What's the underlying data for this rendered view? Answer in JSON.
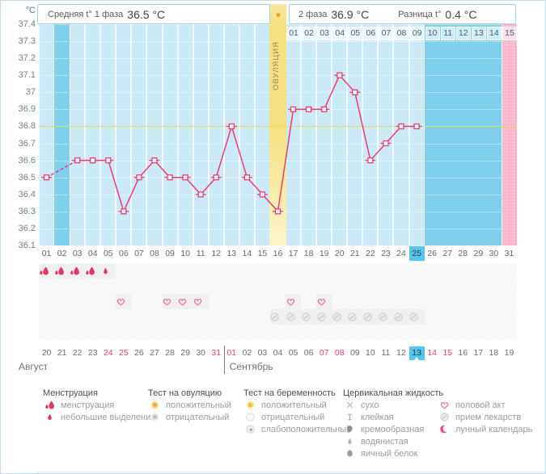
{
  "header": {
    "unit": "°C",
    "phase1_label": "Средняя t° 1 фаза",
    "phase1_value": "36.5 °C",
    "phase2_label": "2 фаза",
    "phase2_value": "36.9 °C",
    "diff_label": "Разница t°",
    "diff_value": "0.4 °C",
    "ovulation_column_label": "ОВУЛЯЦИЯ",
    "ovulation_icon": "ovulation-positive-icon"
  },
  "chart_data": {
    "type": "line",
    "unit": "°C",
    "ylim": [
      36.1,
      37.4
    ],
    "ytick_step": 0.1,
    "yticks": [
      "37.4",
      "37.3",
      "37.2",
      "37.1",
      "37",
      "36.9",
      "36.8",
      "36.7",
      "36.6",
      "36.5",
      "36.4",
      "36.3",
      "36.2",
      "36.1"
    ],
    "x_days": [
      "01",
      "02",
      "03",
      "04",
      "05",
      "06",
      "07",
      "08",
      "09",
      "10",
      "11",
      "12",
      "13",
      "14",
      "15",
      "16",
      "17",
      "18",
      "19",
      "20",
      "21",
      "22",
      "23",
      "24",
      "25",
      "26",
      "27",
      "28",
      "29",
      "30",
      "31"
    ],
    "temps": [
      36.5,
      null,
      36.6,
      36.6,
      36.6,
      36.3,
      36.5,
      36.6,
      36.5,
      36.5,
      36.4,
      36.5,
      36.8,
      36.5,
      36.4,
      36.3,
      36.9,
      36.9,
      36.9,
      37.1,
      37.0,
      36.6,
      36.7,
      36.8,
      36.8,
      null,
      null,
      null,
      null,
      null,
      null
    ],
    "missing_days": [
      2,
      26,
      27,
      28,
      29,
      30,
      31
    ],
    "coverline_temp": 36.8,
    "phase1_avg": 36.5,
    "phase2_avg": 36.9,
    "phase_diff": 0.4,
    "ovulation_day": 16,
    "current_cycle_day": 25,
    "pink_column_day": 31,
    "dpo_labels": [
      "01",
      "02",
      "03",
      "04",
      "05",
      "06",
      "07",
      "08",
      "09",
      "10",
      "11",
      "12",
      "13",
      "14",
      "15"
    ],
    "legend_position": "bottom",
    "grid": true
  },
  "colors": {
    "phase_bg": "#7ed0ec",
    "data_column": "#c9e9f7",
    "ovulation_column": "#f5e180",
    "pink_column": "#f9b6ca",
    "highlight_day": "#54c5eb",
    "line": "#ee3a72",
    "coverline": "#e9dd55",
    "weekend_date": "#f23f6d",
    "menstruation": "#e93460"
  },
  "icon_rows": [
    {
      "name": "menstruation-row",
      "icons": {
        "1": "menstruation-icon",
        "2": "menstruation-icon",
        "3": "menstruation-icon",
        "4": "menstruation-icon",
        "5": "spotting-icon"
      }
    },
    {
      "name": "ovulation-test-row",
      "icons": {}
    },
    {
      "name": "intercourse-row",
      "icons": {
        "6": "intercourse-icon",
        "9": "intercourse-icon",
        "10": "intercourse-icon",
        "11": "intercourse-icon",
        "17": "intercourse-icon",
        "19": "intercourse-icon"
      }
    },
    {
      "name": "medication-row",
      "icons": {
        "16": "medication-icon",
        "17": "medication-icon",
        "18": "medication-icon",
        "19": "medication-icon",
        "20": "medication-icon",
        "21": "medication-icon",
        "22": "medication-icon",
        "23": "medication-icon",
        "24": "medication-icon",
        "25": "medication-icon"
      }
    },
    {
      "name": "cervical-fluid-row",
      "icons": {}
    }
  ],
  "calendar": {
    "dates": [
      {
        "d": "20"
      },
      {
        "d": "21"
      },
      {
        "d": "22"
      },
      {
        "d": "23"
      },
      {
        "d": "24",
        "red": true
      },
      {
        "d": "25",
        "red": true
      },
      {
        "d": "26"
      },
      {
        "d": "27"
      },
      {
        "d": "28"
      },
      {
        "d": "29"
      },
      {
        "d": "30"
      },
      {
        "d": "31",
        "red": true
      },
      {
        "d": "01",
        "red": true
      },
      {
        "d": "02"
      },
      {
        "d": "03"
      },
      {
        "d": "04"
      },
      {
        "d": "05"
      },
      {
        "d": "06"
      },
      {
        "d": "07",
        "red": true
      },
      {
        "d": "08",
        "red": true
      },
      {
        "d": "09"
      },
      {
        "d": "10"
      },
      {
        "d": "11"
      },
      {
        "d": "12"
      },
      {
        "d": "13",
        "today": true
      },
      {
        "d": "14",
        "red": true
      },
      {
        "d": "15",
        "red": true
      },
      {
        "d": "16"
      },
      {
        "d": "17"
      },
      {
        "d": "18"
      },
      {
        "d": "19"
      }
    ],
    "months": [
      {
        "name": "Август"
      },
      {
        "name": "Сентябрь"
      }
    ],
    "separator_index": 12
  },
  "legend": {
    "columns": [
      {
        "header": "Менструация",
        "items": [
          {
            "icon": "menstruation-icon",
            "label": "менструация"
          },
          {
            "icon": "spotting-icon",
            "label": "небольшие выделения"
          }
        ]
      },
      {
        "header": "Тест на овуляцию",
        "items": [
          {
            "icon": "ovulation-positive-icon",
            "label": "положительный"
          },
          {
            "icon": "ovulation-negative-icon",
            "label": "отрицательный"
          }
        ]
      },
      {
        "header": "Тест на беременность",
        "items": [
          {
            "icon": "pregnancy-positive-icon",
            "label": "положительный"
          },
          {
            "icon": "pregnancy-negative-icon",
            "label": "отрицательный"
          },
          {
            "icon": "pregnancy-weak-icon",
            "label": "слабоположительный"
          }
        ]
      },
      {
        "header": "Цервикальная жидкость",
        "items": [
          {
            "icon": "dry-icon",
            "label": "сухо"
          },
          {
            "icon": "sticky-icon",
            "label": "клейкая"
          },
          {
            "icon": "creamy-icon",
            "label": "кремообразная"
          },
          {
            "icon": "watery-icon",
            "label": "водянистая"
          },
          {
            "icon": "eggwhite-icon",
            "label": "яичный белок"
          }
        ]
      },
      {
        "header": "",
        "items": [
          {
            "icon": "intercourse-icon",
            "label": "половой акт"
          },
          {
            "icon": "medication-icon",
            "label": "прием лекарств"
          },
          {
            "icon": "moon-icon",
            "label": "лунный календарь"
          }
        ]
      }
    ]
  }
}
